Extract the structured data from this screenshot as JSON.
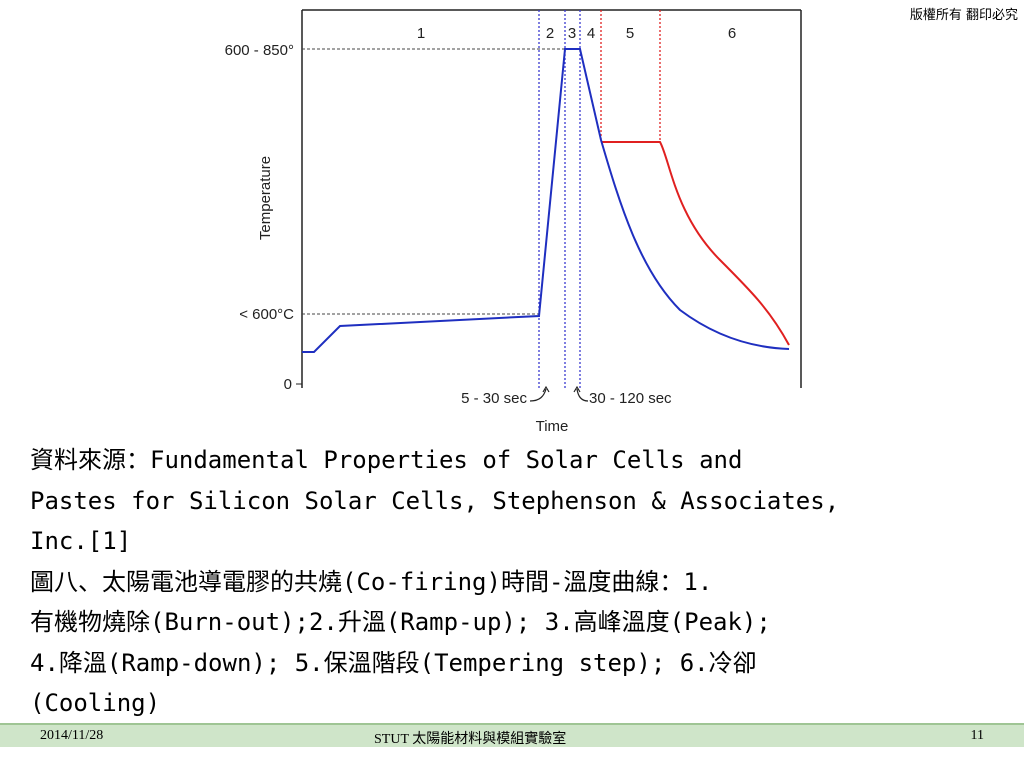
{
  "slide": {
    "copyright": "版權所有 翻印必究",
    "caption_lines": [
      "資料來源：Fundamental Properties of Solar Cells and",
      "Pastes for Silicon Solar Cells, Stephenson & Associates,",
      "Inc.[1]",
      "圖八、太陽電池導電膠的共燒(Co-firing)時間-溫度曲線：1.",
      "有機物燒除(Burn-out);2.升溫(Ramp-up); 3.高峰溫度(Peak);",
      "4.降溫(Ramp-down); 5.保溫階段(Tempering step); 6.冷卻",
      "(Cooling)"
    ]
  },
  "footer": {
    "date": "2014/11/28",
    "title": "STUT 太陽能材料與模組實驗室",
    "page": "11"
  },
  "chart_data": {
    "type": "line",
    "ylabel": "Temperature",
    "xlabel": "Time",
    "y_tick_labels": [
      "600 - 850°",
      "< 600°C",
      "0"
    ],
    "zone_labels": [
      "1",
      "2",
      "3",
      "4",
      "5",
      "6"
    ],
    "annotations": [
      "5 - 30 sec",
      "30 - 120 sec"
    ],
    "colors": {
      "profile": "#1f2fc0",
      "tempering": "#e02020",
      "guide": "#3a3ad0"
    }
  }
}
